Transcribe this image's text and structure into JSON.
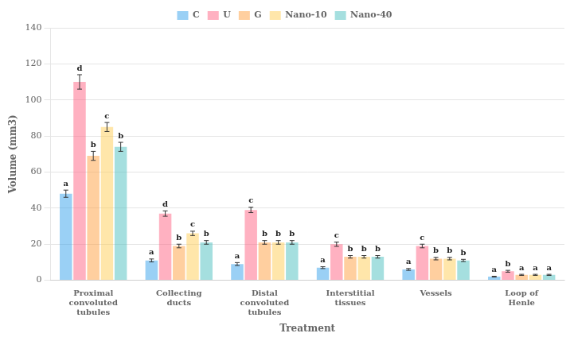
{
  "chart_data": {
    "type": "bar",
    "xlabel": "Treatment",
    "ylabel": "Volume (mm3)",
    "categories": [
      "Proximal\nconvoluted\ntubules",
      "Collecting\nducts",
      "Distal\nconvoluted\ntubules",
      "Interstitial\ntissues",
      "Vessels",
      "Loop of\nHenle"
    ],
    "series": [
      {
        "name": "C",
        "values": [
          48,
          11,
          9,
          7,
          6,
          2
        ],
        "errors": [
          2,
          0.8,
          0.8,
          0.5,
          0.5,
          0.2
        ],
        "letters": [
          "a",
          "a",
          "a",
          "a",
          "a",
          "a"
        ]
      },
      {
        "name": "U",
        "values": [
          110,
          37,
          39,
          20,
          19,
          5
        ],
        "errors": [
          4,
          1.5,
          1.5,
          1.2,
          1,
          0.5
        ],
        "letters": [
          "d",
          "d",
          "c",
          "c",
          "c",
          "b"
        ]
      },
      {
        "name": "G",
        "values": [
          69,
          19,
          21,
          13,
          12,
          3
        ],
        "errors": [
          2.5,
          1,
          1,
          0.7,
          0.7,
          0.3
        ],
        "letters": [
          "b",
          "b",
          "b",
          "b",
          "b",
          "a"
        ]
      },
      {
        "name": "Nano-10",
        "values": [
          85,
          26,
          21,
          13,
          12,
          3
        ],
        "errors": [
          2.5,
          1.2,
          1,
          0.7,
          0.7,
          0.3
        ],
        "letters": [
          "c",
          "c",
          "b",
          "b",
          "b",
          "a"
        ]
      },
      {
        "name": "Nano-40",
        "values": [
          74,
          21,
          21,
          13,
          11,
          3
        ],
        "errors": [
          2.5,
          1,
          1,
          0.7,
          0.6,
          0.3
        ],
        "letters": [
          "b",
          "b",
          "b",
          "b",
          "b",
          "a"
        ]
      }
    ],
    "ylim": [
      0,
      140
    ],
    "yticks": [
      0,
      20,
      40,
      60,
      80,
      100,
      120,
      140
    ],
    "grid": true,
    "legend": "top"
  }
}
